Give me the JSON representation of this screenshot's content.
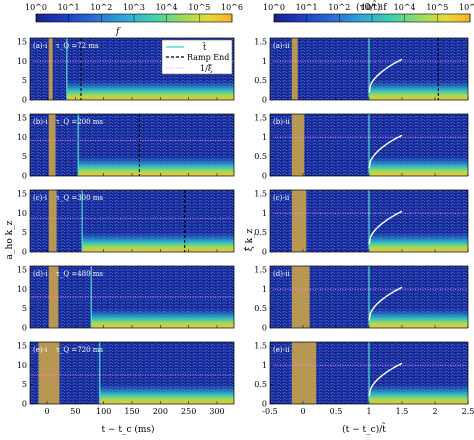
{
  "colorbars": {
    "left": {
      "label": "f",
      "tick_labels": [
        "10^0",
        "10^1",
        "10^2",
        "10^3",
        "10^4",
        "10^5",
        "10^6"
      ]
    },
    "right": {
      "label": "(τ0/t̂) f",
      "tick_labels": [
        "10^0",
        "10^1",
        "10^2",
        "10^3",
        "10^4",
        "10^5",
        "10^6"
      ]
    }
  },
  "colormap": [
    "#1a1f8c",
    "#1f3fbf",
    "#2a6fd6",
    "#2fa6d8",
    "#3fd0b0",
    "#9bdc5a",
    "#e8d83a",
    "#f7b02a"
  ],
  "legend": {
    "entries": [
      {
        "label": "t̂",
        "style": "solid",
        "color": "#4fe0d0"
      },
      {
        "label": "Ramp End",
        "style": "dashed",
        "color": "#000000"
      },
      {
        "label": "1/ξ̂",
        "style": "dotted",
        "color": "#ff80ff"
      }
    ]
  },
  "chart_data": [
    {
      "type": "heatmap",
      "column": "left",
      "xlabel": "t − t_c (ms)",
      "ylabel": "a_ho k_z",
      "xlim": [
        -30,
        330
      ],
      "ylim": [
        0,
        16
      ],
      "xticks": [
        0,
        50,
        100,
        150,
        200,
        250,
        300
      ],
      "yticks": [
        0,
        5,
        10,
        15
      ],
      "panels": [
        {
          "label": "(a)-i",
          "tau_q_text": "τ_Q =72 ms",
          "tq": 72,
          "that": 35,
          "ramp_end": 60,
          "inv_xi": 10.0,
          "shade": [
            3,
            10
          ]
        },
        {
          "label": "(b)-i",
          "tau_q_text": "τ_Q =200 ms",
          "tq": 200,
          "that": 55,
          "ramp_end": 163,
          "inv_xi": 9.2,
          "shade": [
            3,
            15
          ]
        },
        {
          "label": "(c)-i",
          "tau_q_text": "τ_Q =300 ms",
          "tq": 300,
          "that": 62,
          "ramp_end": 243,
          "inv_xi": 8.7,
          "shade": [
            3,
            17
          ]
        },
        {
          "label": "(d)-i",
          "tau_q_text": "τ_Q =480 ms",
          "tq": 480,
          "that": 78,
          "ramp_end": null,
          "inv_xi": 8.0,
          "shade": [
            3,
            20
          ]
        },
        {
          "label": "(e)-i",
          "tau_q_text": "τ_Q =720 ms",
          "tq": 720,
          "that": 93,
          "ramp_end": null,
          "inv_xi": 7.5,
          "shade": [
            -15,
            22
          ]
        }
      ]
    },
    {
      "type": "heatmap",
      "column": "right",
      "xlabel": "(t − t_c)/t̂",
      "ylabel": "ξ̂ k_z",
      "xlim": [
        -0.5,
        2.5
      ],
      "ylim": [
        0,
        1.6
      ],
      "xticks": [
        -0.5,
        0,
        0.5,
        1,
        1.5,
        2,
        2.5
      ],
      "xtick_labels": [
        "-0.5",
        "0",
        "0.5",
        "1",
        "1.5",
        "2",
        "2.5"
      ],
      "yticks": [
        0,
        0.5,
        1,
        1.5
      ],
      "ytick_labels": [
        "0",
        "0.5",
        "1",
        "1.5"
      ],
      "panels": [
        {
          "label": "(a)-ii",
          "shade": [
            -0.17,
            -0.08
          ],
          "ramp_end": 2.05
        },
        {
          "label": "(b)-ii",
          "shade": [
            -0.17,
            0.02
          ],
          "ramp_end": null
        },
        {
          "label": "(c)-ii",
          "shade": [
            -0.17,
            0.05
          ],
          "ramp_end": null
        },
        {
          "label": "(d)-ii",
          "shade": [
            -0.17,
            0.1
          ],
          "ramp_end": null
        },
        {
          "label": "(e)-ii",
          "shade": [
            -0.17,
            0.2
          ],
          "ramp_end": null
        }
      ],
      "that_line": 1.0,
      "inv_xi_line": 1.0
    }
  ]
}
